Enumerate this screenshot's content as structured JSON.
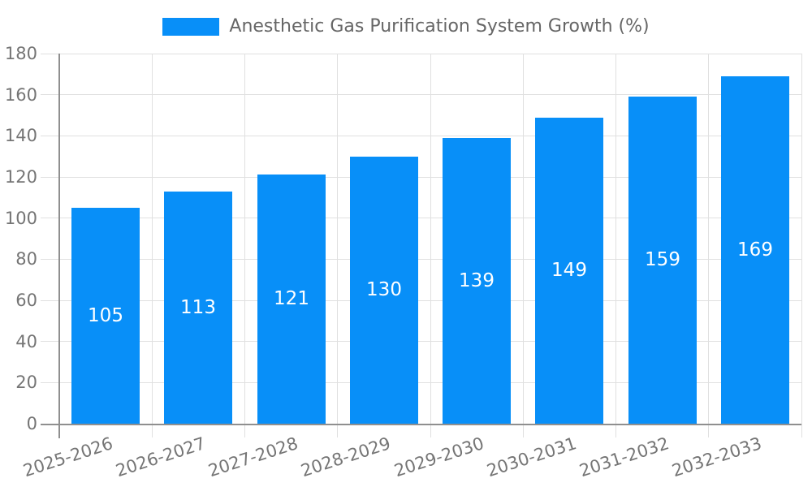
{
  "legend": {
    "label": "Anesthetic Gas Purification System Growth (%)"
  },
  "chart_data": {
    "type": "bar",
    "title": "",
    "categories": [
      "2025-2026",
      "2026-2027",
      "2027-2028",
      "2028-2029",
      "2029-2030",
      "2030-2031",
      "2031-2032",
      "2032-2033"
    ],
    "series": [
      {
        "name": "Anesthetic Gas Purification System Growth (%)",
        "values": [
          105,
          113,
          121,
          130,
          139,
          149,
          159,
          169
        ]
      }
    ],
    "value_labels": [
      105,
      113,
      121,
      130,
      139,
      149,
      159,
      169
    ],
    "xlabel": "",
    "ylabel": "",
    "ylim": [
      0,
      180
    ],
    "yticks": [
      0,
      20,
      40,
      60,
      80,
      100,
      120,
      140,
      160,
      180
    ],
    "grid": true,
    "legend_position": "top-center",
    "value_label_position": "inside-center",
    "x_tick_rotation_deg": 18
  },
  "colors": {
    "bar": "#088FF8",
    "axis_line": "#8F8F8F",
    "gridline": "#E0E0E0",
    "tick_label": "#757575",
    "legend_text": "#666666",
    "value_label": "#FFFFFF",
    "background": "#FFFFFF"
  }
}
